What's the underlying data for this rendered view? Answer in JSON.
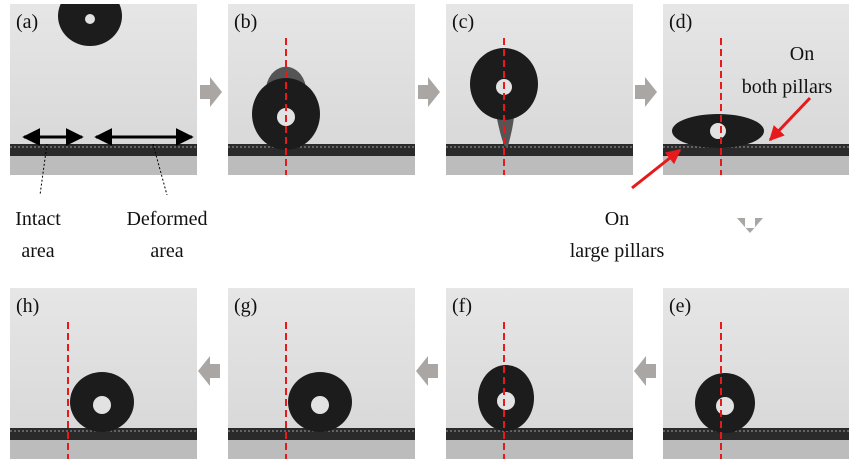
{
  "panels": [
    {
      "label": "(a)"
    },
    {
      "label": "(b)"
    },
    {
      "label": "(c)"
    },
    {
      "label": "(d)"
    },
    {
      "label": "(e)"
    },
    {
      "label": "(f)"
    },
    {
      "label": "(g)"
    },
    {
      "label": "(h)"
    }
  ],
  "annotations": {
    "intact_area": [
      "Intact",
      "area"
    ],
    "deformed_area": [
      "Deformed",
      "area"
    ],
    "large_pillars": [
      "On",
      "large pillars"
    ],
    "both_pillars": [
      "On",
      "both pillars"
    ]
  }
}
